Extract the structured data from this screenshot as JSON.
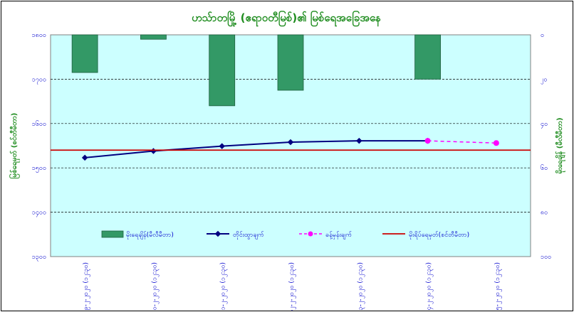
{
  "chart_data": {
    "type": "bar+line",
    "title": "ဟသ်ာတမြို့ (ဧရာဝတီမြစ်)၏ မြစ်ရေအခြေအနေ",
    "ylabel_left": "မြစ်ရေမှတ် (စင်တီမီတာ)",
    "ylabel_right": "မိုးရေချိန် (မီလီမီတာ)",
    "ylim_left": [
      1300,
      1800
    ],
    "ylim_right": [
      100,
      0
    ],
    "yticks_left": [
      "၁၈၀၀",
      "၁၇၀၀",
      "၁၆၀၀",
      "၁၅၀၀",
      "၁၄၀၀",
      "၁၃၀၀"
    ],
    "yticks_right": [
      "၀",
      "၂၀",
      "၄၀",
      "၆၀",
      "၈၀",
      "၁၀၀"
    ],
    "categories": [
      "၉-၂-၂၀၂၀ (၁၂:၃၀)",
      "၁၀-၂-၂၀၂၀ (၁၂:၃၀)",
      "၁၁-၂-၂၀၂၀ (၁၂:၃၀)",
      "၁၂-၂-၂၀၂၀ (၁၂:၃၀)",
      "၁၃-၂-၂၀၂၀ (၁၂:၃၀)",
      "၁၄-၂-၂၀၂၀ (၁၂:၃၀)",
      "၁၅-၂-၂၀၂၀ (၁၂:၃၀)"
    ],
    "series": [
      {
        "name": "မိုးရေချိန်(မီလီမီတာ)",
        "kind": "bar",
        "axis": "right",
        "color": "#339966",
        "values": [
          17,
          2,
          32,
          25,
          null,
          20,
          null
        ]
      },
      {
        "name": "တိုင်းထွာချက်",
        "kind": "line",
        "axis": "left",
        "color": "#000080",
        "values": [
          1523,
          1538,
          1549,
          1558,
          1561,
          1561,
          null
        ]
      },
      {
        "name": "ခန့်မှန်းချက်",
        "kind": "line-dashed",
        "axis": "left",
        "color": "#ff00ff",
        "values": [
          null,
          null,
          null,
          null,
          null,
          1561,
          1556
        ]
      },
      {
        "name": "မိုးရိပ်ရေမှတ်(စင်တီမီတာ)",
        "kind": "hline",
        "axis": "left",
        "color": "#cc0000",
        "value": 1540
      }
    ],
    "grid": true,
    "legend": "bottom-inside"
  }
}
